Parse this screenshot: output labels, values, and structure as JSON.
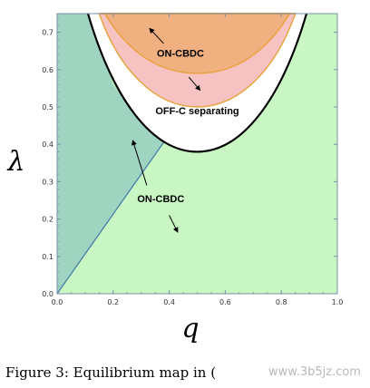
{
  "chart_data": {
    "type": "area",
    "xlabel": "q",
    "ylabel": "λ",
    "xlim": [
      0,
      1
    ],
    "ylim": [
      0,
      0.75
    ],
    "xticks": [
      0.0,
      0.2,
      0.4,
      0.6,
      0.8,
      1.0
    ],
    "xtick_labels": [
      "0.0",
      "0.2",
      "0.4",
      "0.6",
      "0.8",
      "1.0"
    ],
    "yticks": [
      0.0,
      0.1,
      0.2,
      0.3,
      0.4,
      0.5,
      0.6,
      0.7
    ],
    "ytick_labels": [
      "0.0",
      "0.1",
      "0.2",
      "0.3",
      "0.4",
      "0.5",
      "0.6",
      "0.7"
    ],
    "grid": false,
    "boundaries": {
      "u_curve": {
        "description_points": [
          [
            0.11,
            0.75
          ],
          [
            0.2,
            0.56
          ],
          [
            0.3,
            0.46
          ],
          [
            0.4,
            0.4
          ],
          [
            0.5,
            0.38
          ],
          [
            0.6,
            0.4
          ],
          [
            0.7,
            0.46
          ],
          [
            0.8,
            0.56
          ],
          [
            0.89,
            0.75
          ]
        ]
      },
      "diagonal": {
        "points": [
          [
            0.0,
            0.0
          ],
          [
            0.38,
            0.405
          ]
        ]
      },
      "orange_curve": {
        "points": [
          [
            0.17,
            0.75
          ],
          [
            0.3,
            0.64
          ],
          [
            0.4,
            0.6
          ],
          [
            0.5,
            0.59
          ],
          [
            0.6,
            0.6
          ],
          [
            0.7,
            0.64
          ],
          [
            0.83,
            0.75
          ]
        ]
      },
      "pink_curve": {
        "points": [
          [
            0.15,
            0.75
          ],
          [
            0.2,
            0.68
          ],
          [
            0.3,
            0.57
          ],
          [
            0.4,
            0.515
          ],
          [
            0.5,
            0.5
          ],
          [
            0.6,
            0.515
          ],
          [
            0.7,
            0.57
          ],
          [
            0.8,
            0.68
          ],
          [
            0.85,
            0.75
          ]
        ]
      }
    },
    "regions": [
      {
        "name": "teal",
        "color": "#9fd4c0"
      },
      {
        "name": "green",
        "color": "#c9f7c4"
      },
      {
        "name": "white",
        "color": "#ffffff"
      },
      {
        "name": "pink",
        "color": "#f7c2c2"
      },
      {
        "name": "orange",
        "color": "#f0b080"
      }
    ],
    "annotations": [
      {
        "text": "ON-CBDC",
        "at": [
          0.44,
          0.635
        ],
        "arrows": [
          {
            "from": [
              0.38,
              0.67
            ],
            "to": [
              0.33,
              0.71
            ]
          },
          {
            "from": [
              0.47,
              0.58
            ],
            "to": [
              0.51,
              0.545
            ]
          }
        ]
      },
      {
        "text": "OFF-C separating",
        "at": [
          0.5,
          0.48
        ],
        "arrows": []
      },
      {
        "text": "ON-CBDC",
        "at": [
          0.37,
          0.245
        ],
        "arrows": [
          {
            "from": [
              0.32,
              0.29
            ],
            "to": [
              0.27,
              0.41
            ]
          },
          {
            "from": [
              0.4,
              0.21
            ],
            "to": [
              0.43,
              0.165
            ]
          }
        ]
      }
    ]
  },
  "caption": {
    "text": "Figure 3: Equilibrium map in (",
    "watermark": "www.3b5jz.com"
  }
}
